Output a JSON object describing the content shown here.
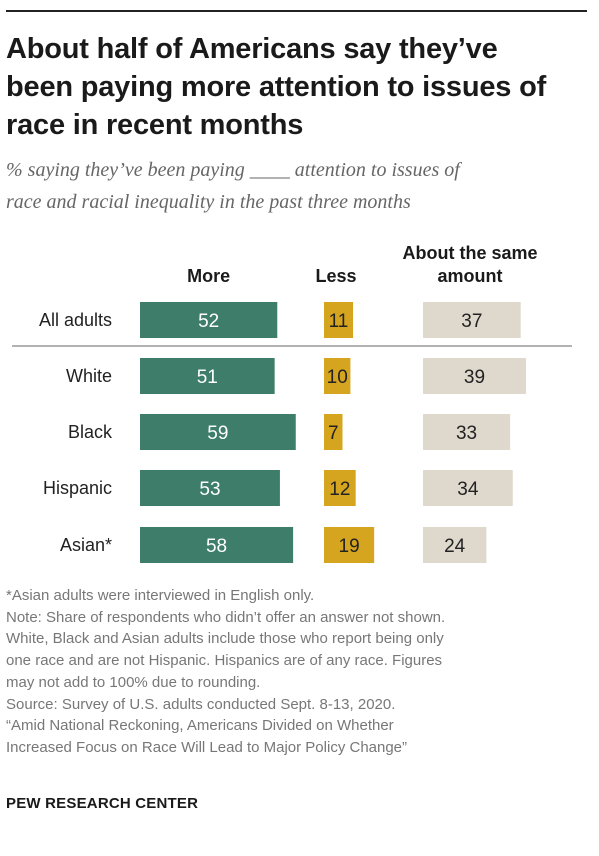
{
  "title_lines": [
    "About half of Americans say they’ve",
    "been paying more attention to issues of",
    "race in recent months"
  ],
  "subtitle_lines": [
    "% saying they’ve been paying ____ attention to issues of",
    "race and racial inequality in the past three months"
  ],
  "colors": {
    "more": "#3d7d69",
    "less": "#d6a51f",
    "same": "#ded9cc",
    "rule": "#999999"
  },
  "chart_data": {
    "type": "bar",
    "categories": [
      "All adults",
      "White",
      "Black",
      "Hispanic",
      "Asian*"
    ],
    "column_headers": [
      "More",
      "Less",
      "About the same amount"
    ],
    "series": [
      {
        "name": "More",
        "values": [
          52,
          51,
          59,
          53,
          58
        ]
      },
      {
        "name": "Less",
        "values": [
          11,
          10,
          7,
          12,
          19
        ]
      },
      {
        "name": "About the same amount",
        "values": [
          37,
          39,
          33,
          34,
          24
        ]
      }
    ],
    "divider_after_category": "All adults"
  },
  "notes": [
    "*Asian adults were interviewed in English only.",
    "Note: Share of respondents who didn’t offer an answer not shown.",
    "White, Black and Asian adults include those who report being only",
    "one race and are not Hispanic. Hispanics are of any race. Figures",
    "may not add to 100% due to rounding.",
    "Source: Survey of U.S. adults conducted Sept. 8-13, 2020.",
    "“Amid National Reckoning, Americans Divided on Whether",
    "Increased Focus on Race Will Lead to Major Policy Change”"
  ],
  "brand": "PEW RESEARCH CENTER"
}
